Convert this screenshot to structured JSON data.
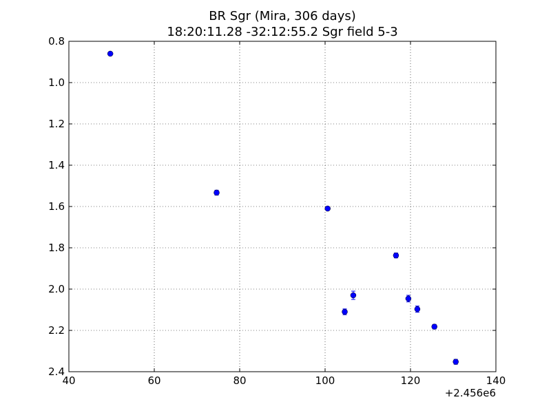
{
  "chart_data": {
    "type": "scatter",
    "title": "BR Sgr (Mira, 306 days)",
    "subtitle": "18:20:11.28 -32:12:55.2 Sgr field 5-3",
    "xlabel": "",
    "ylabel": "",
    "x_offset_label": "+2.456e6",
    "xlim": [
      40,
      140
    ],
    "ylim": [
      0.8,
      2.4
    ],
    "y_inverted": true,
    "x_ticks": [
      40,
      60,
      80,
      100,
      120,
      140
    ],
    "y_ticks": [
      0.8,
      1.0,
      1.2,
      1.4,
      1.6,
      1.8,
      2.0,
      2.2,
      2.4
    ],
    "x_tick_labels": [
      "40",
      "60",
      "80",
      "100",
      "120",
      "140"
    ],
    "y_tick_labels": [
      "0.8",
      "1.0",
      "1.2",
      "1.4",
      "1.6",
      "1.8",
      "2.0",
      "2.2",
      "2.4"
    ],
    "grid": true,
    "marker_color": "#0000ff",
    "points": [
      {
        "x": 49.7,
        "y": 0.86,
        "err": 0.005
      },
      {
        "x": 74.6,
        "y": 1.533,
        "err": 0.012
      },
      {
        "x": 100.6,
        "y": 1.61,
        "err": 0.006
      },
      {
        "x": 104.6,
        "y": 2.11,
        "err": 0.014
      },
      {
        "x": 106.6,
        "y": 2.03,
        "err": 0.02
      },
      {
        "x": 116.6,
        "y": 1.837,
        "err": 0.012
      },
      {
        "x": 119.5,
        "y": 2.046,
        "err": 0.016
      },
      {
        "x": 121.6,
        "y": 2.097,
        "err": 0.015
      },
      {
        "x": 125.6,
        "y": 2.182,
        "err": 0.011
      },
      {
        "x": 130.6,
        "y": 2.352,
        "err": 0.012
      }
    ]
  }
}
